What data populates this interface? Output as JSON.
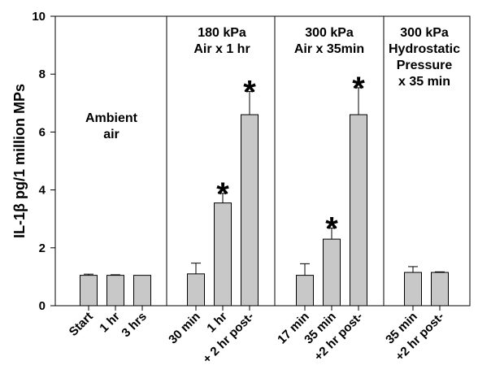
{
  "chart_data": {
    "type": "bar",
    "ylabel": "IL-1β pg/1 million MPs",
    "ylim": [
      0,
      10
    ],
    "yticks": [
      "0",
      "2",
      "4",
      "6",
      "8",
      "10"
    ],
    "categories": [
      "Start",
      "1 hr",
      "3 hrs",
      "30 min",
      "1 hr",
      "+ 2 hr post-",
      "17 min",
      "35 min",
      "+2 hr post-",
      "35 min",
      "+2 hr post-"
    ],
    "values": [
      1.05,
      1.05,
      1.05,
      1.1,
      3.55,
      6.6,
      1.05,
      2.3,
      6.6,
      1.15,
      1.15
    ],
    "errors": [
      0.04,
      0.02,
      0.0,
      0.37,
      0.33,
      0.8,
      0.4,
      0.38,
      0.93,
      0.2,
      0.02
    ],
    "significant": [
      false,
      false,
      false,
      false,
      true,
      true,
      false,
      true,
      true,
      false,
      false
    ],
    "significance_marker": "*",
    "bar_color": "#c8c8c8",
    "panels": [
      {
        "label_lines": [
          "Ambient",
          "air"
        ],
        "bars": [
          0,
          1,
          2
        ]
      },
      {
        "label_lines": [
          "180 kPa",
          "Air x 1 hr"
        ],
        "bars": [
          3,
          4,
          5
        ]
      },
      {
        "label_lines": [
          "300 kPa",
          "Air x 35min"
        ],
        "bars": [
          6,
          7,
          8
        ]
      },
      {
        "label_lines": [
          "300 kPa",
          "Hydrostatic",
          "Pressure",
          "x 35 min"
        ],
        "bars": [
          9,
          10
        ]
      }
    ]
  }
}
